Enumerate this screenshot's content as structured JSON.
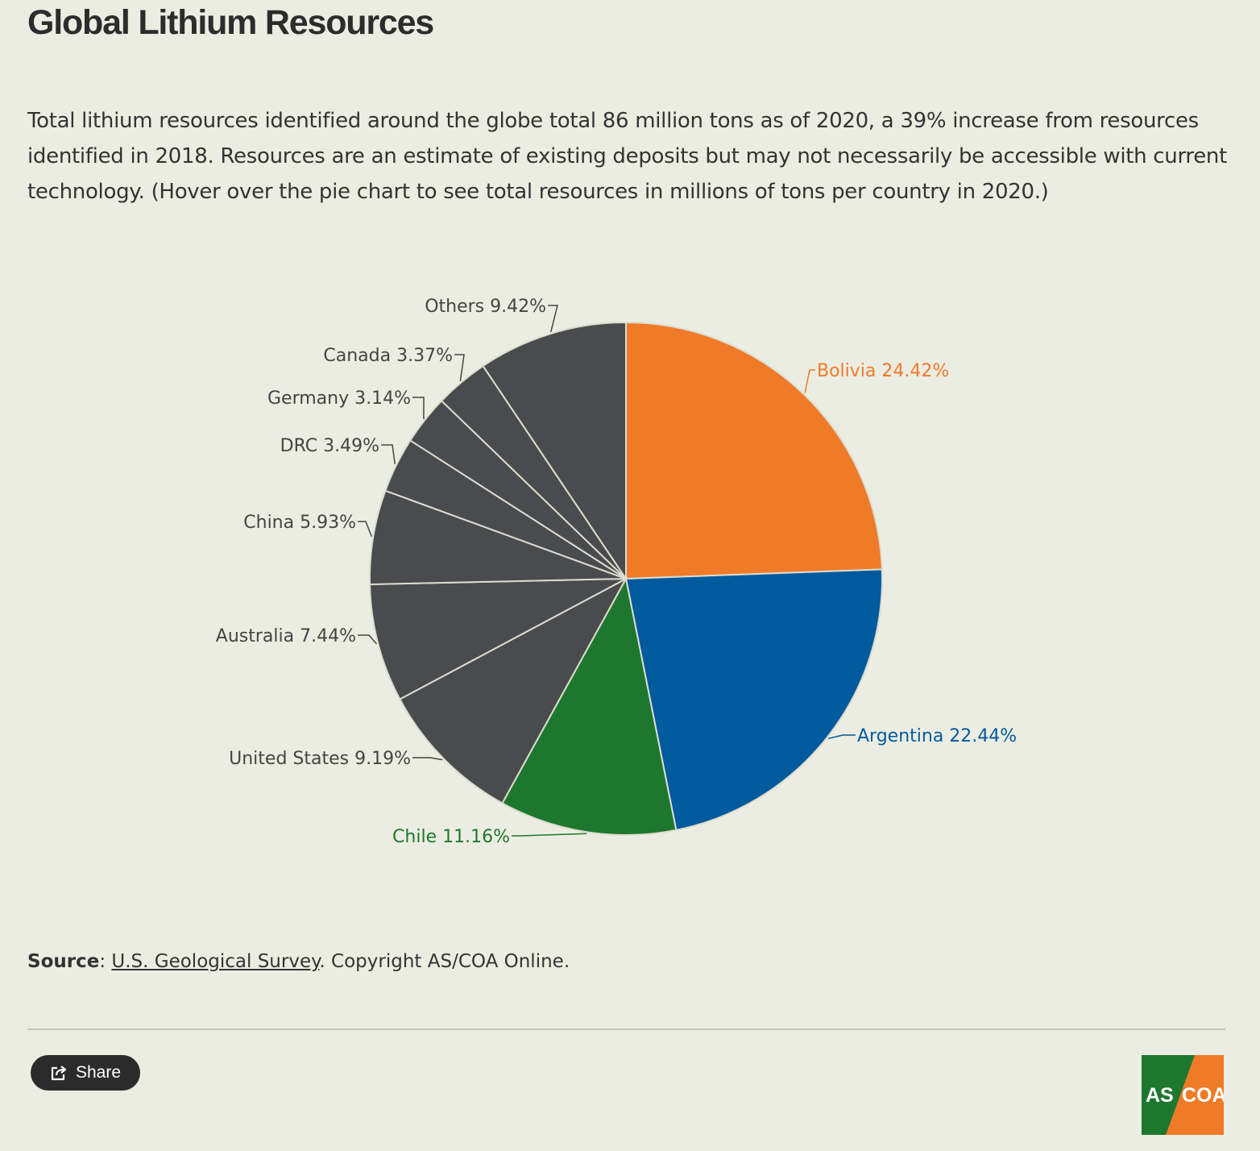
{
  "header": {
    "title": "Global Lithium Resources",
    "description": "Total lithium resources identified around the globe total 86 million tons as of 2020, a 39% increase from resources identified in 2018. Resources are an estimate of existing deposits but may not necessarily be accessible with current technology. (Hover over the pie chart to see total resources in millions of tons per country in 2020.)"
  },
  "chart_data": {
    "type": "pie",
    "slices": [
      {
        "label": "Bolivia",
        "value": 24.42,
        "display": "Bolivia 24.42%",
        "color": "#ef7b29"
      },
      {
        "label": "Argentina",
        "value": 22.44,
        "display": "Argentina 22.44%",
        "color": "#005a9e"
      },
      {
        "label": "Chile",
        "value": 11.16,
        "display": "Chile 11.16%",
        "color": "#1e772e"
      },
      {
        "label": "United States",
        "value": 9.19,
        "display": "United States 9.19%",
        "color": "#4a4b4d"
      },
      {
        "label": "Australia",
        "value": 7.44,
        "display": "Australia 7.44%",
        "color": "#4a4b4d"
      },
      {
        "label": "China",
        "value": 5.93,
        "display": "China 5.93%",
        "color": "#4a4b4d"
      },
      {
        "label": "DRC",
        "value": 3.49,
        "display": "DRC 3.49%",
        "color": "#4a4b4d"
      },
      {
        "label": "Germany",
        "value": 3.14,
        "display": "Germany 3.14%",
        "color": "#4a4b4d"
      },
      {
        "label": "Canada",
        "value": 3.37,
        "display": "Canada 3.37%",
        "color": "#4a4b4d"
      },
      {
        "label": "Others",
        "value": 9.42,
        "display": "Others 9.42%",
        "color": "#4a4b4d"
      }
    ],
    "label_colors": {
      "Bolivia": "#ef7b29",
      "Argentina": "#005a9e",
      "Chile": "#1e772e",
      "default": "#444444"
    }
  },
  "footer": {
    "source_label": "Source",
    "source_link": "U.S. Geological Survey",
    "copyright": ". Copyright AS/COA Online.",
    "share_label": "Share",
    "logo_left": "AS",
    "logo_right": "COA",
    "logo_colors": {
      "green": "#1e772e",
      "orange": "#ef7b29"
    }
  }
}
